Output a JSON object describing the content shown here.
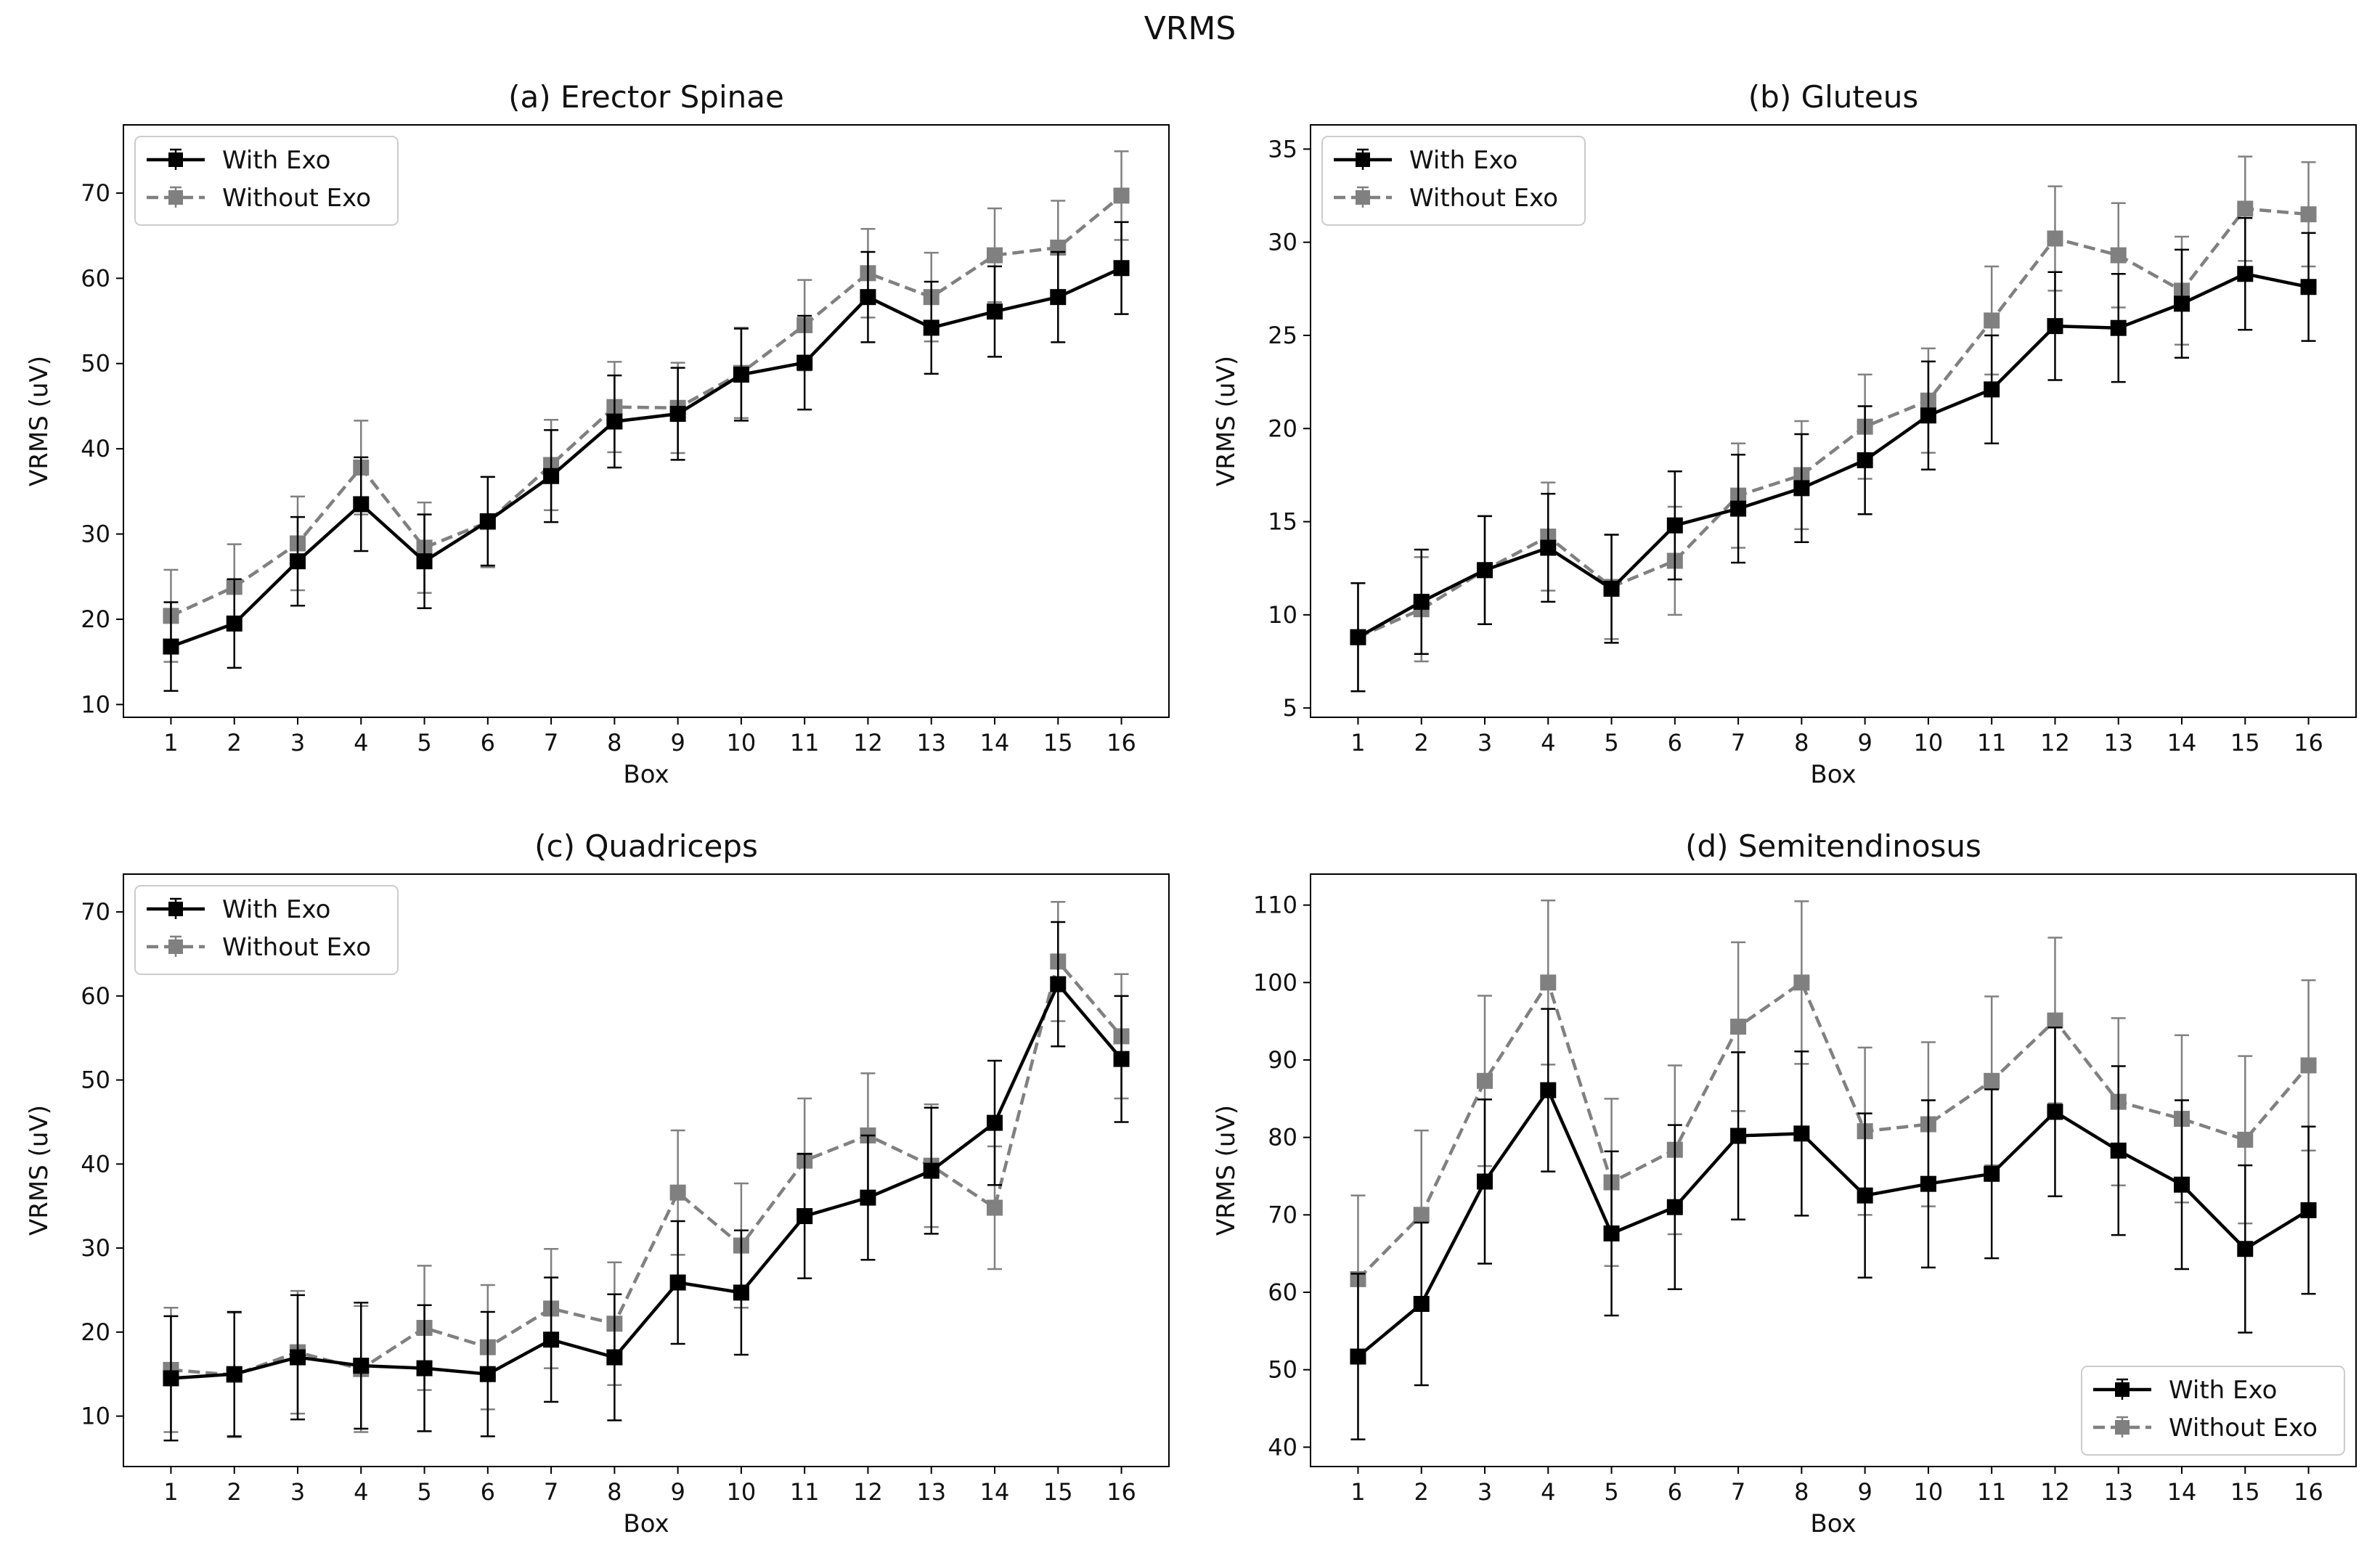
{
  "suptitle": "VRMS",
  "chart_data": [
    {
      "type": "line",
      "title": "(a)  Erector Spinae",
      "xlabel": "Box",
      "ylabel": "VRMS (uV)",
      "x": [
        1,
        2,
        3,
        4,
        5,
        6,
        7,
        8,
        9,
        10,
        11,
        12,
        13,
        14,
        15,
        16
      ],
      "ylim": [
        8.5,
        78
      ],
      "yticks": [
        10,
        20,
        30,
        40,
        50,
        60,
        70
      ],
      "legend_loc": "upper-left",
      "series": [
        {
          "name": "With Exo",
          "color": "#000000",
          "dash": "solid",
          "values": [
            16.8,
            19.5,
            26.8,
            33.5,
            26.8,
            31.5,
            36.8,
            43.2,
            44.1,
            48.7,
            50.1,
            57.8,
            54.2,
            56.1,
            57.8,
            61.2
          ],
          "errors": [
            5.2,
            5.2,
            5.2,
            5.5,
            5.5,
            5.2,
            5.4,
            5.4,
            5.4,
            5.4,
            5.5,
            5.3,
            5.4,
            5.3,
            5.3,
            5.4
          ]
        },
        {
          "name": "Without Exo",
          "color": "#808080",
          "dash": "dashed",
          "values": [
            20.4,
            23.8,
            28.9,
            37.8,
            28.4,
            31.4,
            38.1,
            44.9,
            44.8,
            48.9,
            54.5,
            60.6,
            57.8,
            62.7,
            63.6,
            69.7
          ],
          "errors": [
            5.4,
            5.0,
            5.5,
            5.5,
            5.3,
            5.3,
            5.3,
            5.3,
            5.3,
            5.3,
            5.3,
            5.2,
            5.2,
            5.5,
            5.5,
            5.2
          ]
        }
      ]
    },
    {
      "type": "line",
      "title": "(b)  Gluteus",
      "xlabel": "Box",
      "ylabel": "VRMS (uV)",
      "x": [
        1,
        2,
        3,
        4,
        5,
        6,
        7,
        8,
        9,
        10,
        11,
        12,
        13,
        14,
        15,
        16
      ],
      "ylim": [
        4.5,
        36.3
      ],
      "yticks": [
        5,
        10,
        15,
        20,
        25,
        30,
        35
      ],
      "legend_loc": "upper-left",
      "series": [
        {
          "name": "With Exo",
          "color": "#000000",
          "dash": "solid",
          "values": [
            8.8,
            10.7,
            12.4,
            13.6,
            11.4,
            14.8,
            15.7,
            16.8,
            18.3,
            20.7,
            22.1,
            25.5,
            25.4,
            26.7,
            28.3,
            27.6
          ],
          "errors": [
            2.9,
            2.8,
            2.9,
            2.9,
            2.9,
            2.9,
            2.9,
            2.9,
            2.9,
            2.9,
            2.9,
            2.9,
            2.9,
            2.9,
            3.0,
            2.9
          ]
        },
        {
          "name": "Without Exo",
          "color": "#808080",
          "dash": "dashed",
          "values": [
            8.8,
            10.3,
            12.4,
            14.2,
            11.5,
            12.9,
            16.4,
            17.5,
            20.1,
            21.5,
            25.8,
            30.2,
            29.3,
            27.4,
            31.8,
            31.5
          ],
          "errors": [
            2.9,
            2.8,
            2.9,
            2.9,
            2.8,
            2.9,
            2.8,
            2.9,
            2.8,
            2.8,
            2.9,
            2.8,
            2.8,
            2.9,
            2.8,
            2.8
          ]
        }
      ]
    },
    {
      "type": "line",
      "title": "(c)  Quadriceps",
      "xlabel": "Box",
      "ylabel": "VRMS (uV)",
      "x": [
        1,
        2,
        3,
        4,
        5,
        6,
        7,
        8,
        9,
        10,
        11,
        12,
        13,
        14,
        15,
        16
      ],
      "ylim": [
        4,
        74.5
      ],
      "yticks": [
        10,
        20,
        30,
        40,
        50,
        60,
        70
      ],
      "legend_loc": "upper-left",
      "series": [
        {
          "name": "With Exo",
          "color": "#000000",
          "dash": "solid",
          "values": [
            14.5,
            15.0,
            17.0,
            16.0,
            15.7,
            15.0,
            19.1,
            17.0,
            25.9,
            24.7,
            33.8,
            36.0,
            39.2,
            44.9,
            61.4,
            52.5
          ],
          "errors": [
            7.4,
            7.4,
            7.4,
            7.5,
            7.5,
            7.4,
            7.4,
            7.5,
            7.3,
            7.4,
            7.4,
            7.4,
            7.5,
            7.4,
            7.4,
            7.5
          ]
        },
        {
          "name": "Without Exo",
          "color": "#808080",
          "dash": "dashed",
          "values": [
            15.5,
            14.9,
            17.6,
            15.6,
            20.5,
            18.2,
            22.8,
            21.0,
            36.6,
            30.3,
            40.4,
            43.4,
            39.8,
            34.8,
            64.1,
            55.2
          ],
          "errors": [
            7.4,
            7.4,
            7.3,
            7.5,
            7.4,
            7.4,
            7.1,
            7.3,
            7.4,
            7.4,
            7.4,
            7.4,
            7.3,
            7.3,
            7.1,
            7.4
          ]
        }
      ]
    },
    {
      "type": "line",
      "title": "(d)  Semitendinosus",
      "xlabel": "Box",
      "ylabel": "VRMS (uV)",
      "x": [
        1,
        2,
        3,
        4,
        5,
        6,
        7,
        8,
        9,
        10,
        11,
        12,
        13,
        14,
        15,
        16
      ],
      "ylim": [
        37.5,
        114
      ],
      "yticks": [
        40,
        50,
        60,
        70,
        80,
        90,
        100,
        110
      ],
      "legend_loc": "lower-right",
      "series": [
        {
          "name": "With Exo",
          "color": "#000000",
          "dash": "solid",
          "values": [
            51.7,
            58.5,
            74.3,
            86.1,
            67.6,
            71.0,
            80.2,
            80.5,
            72.5,
            74.0,
            75.3,
            83.3,
            78.3,
            73.9,
            65.6,
            70.6
          ],
          "errors": [
            10.7,
            10.5,
            10.6,
            10.5,
            10.6,
            10.6,
            10.8,
            10.6,
            10.6,
            10.8,
            10.9,
            10.9,
            10.9,
            10.9,
            10.8,
            10.8
          ]
        },
        {
          "name": "Without Exo",
          "color": "#808080",
          "dash": "dashed",
          "values": [
            61.7,
            70.0,
            87.3,
            100.0,
            74.2,
            78.4,
            94.3,
            100.0,
            80.8,
            81.7,
            87.3,
            95.1,
            84.6,
            82.4,
            79.7,
            89.3
          ],
          "errors": [
            10.8,
            10.9,
            11.0,
            10.6,
            10.8,
            10.9,
            10.9,
            10.5,
            10.8,
            10.6,
            10.9,
            10.7,
            10.8,
            10.8,
            10.8,
            11.0
          ]
        }
      ]
    }
  ]
}
